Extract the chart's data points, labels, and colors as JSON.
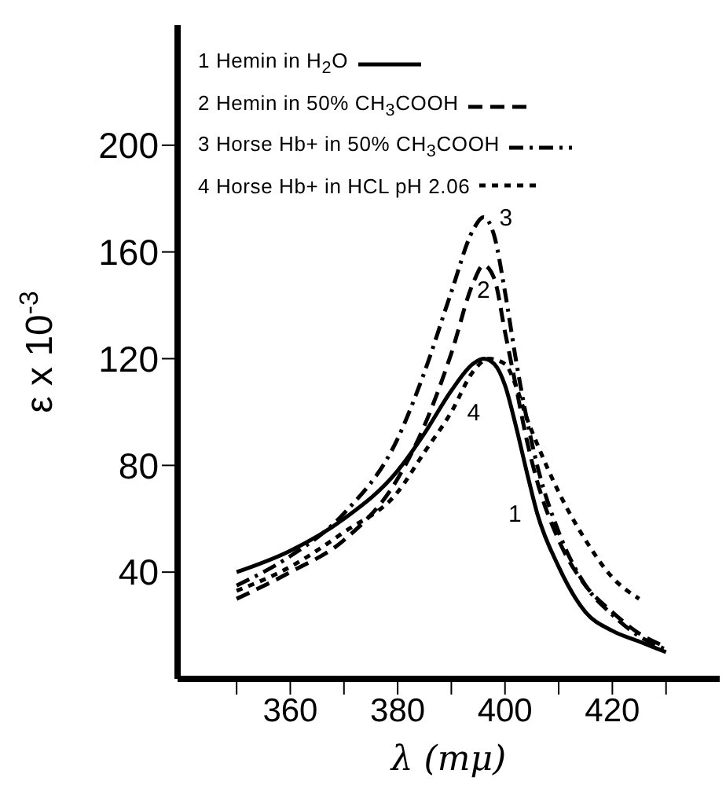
{
  "chart_data": {
    "type": "line",
    "xlabel": "λ (mμ)",
    "ylabel": "ε x 10$^{-3}$",
    "xlim": [
      339,
      440
    ],
    "xticks": [
      {
        "value": 350,
        "label": null
      },
      360,
      {
        "value": 370,
        "label": null
      },
      380,
      {
        "value": 390,
        "label": null
      },
      400,
      {
        "value": 410,
        "label": null
      },
      420,
      {
        "value": 430,
        "label": null
      }
    ],
    "ylim": [
      0,
      245
    ],
    "yticks": [
      40,
      80,
      120,
      160,
      200
    ],
    "grid": false,
    "legend": "top",
    "marker": "none",
    "series": [
      {
        "name": "1 Hemin in H$_{2}$O",
        "color": "#000000",
        "line_style": "solid",
        "x": [
          350,
          360,
          370,
          380,
          385,
          390,
          394,
          396,
          398,
          400,
          402,
          404,
          406,
          410,
          415,
          420,
          425,
          430
        ],
        "values": [
          40,
          48,
          60,
          78,
          92,
          108,
          118,
          120,
          118,
          110,
          95,
          78,
          62,
          42,
          25,
          18,
          14,
          10
        ]
      },
      {
        "name": "2 Hemin in 50% CH$_{3}$COOH",
        "color": "#000000",
        "line_style": "dashed",
        "x": [
          350,
          360,
          370,
          380,
          385,
          390,
          394,
          396,
          398,
          400,
          402,
          404,
          406,
          410,
          415,
          420,
          425,
          430
        ],
        "values": [
          30,
          40,
          52,
          75,
          95,
          122,
          148,
          155,
          150,
          130,
          110,
          90,
          74,
          52,
          35,
          25,
          17,
          12
        ]
      },
      {
        "name": "3 Horse Hb+ in 50% CH$_{3}$COOH",
        "color": "#000000",
        "line_style": "dashdot",
        "x": [
          350,
          360,
          370,
          380,
          385,
          390,
          394,
          396,
          398,
          400,
          402,
          404,
          406,
          410,
          415,
          420,
          425,
          430
        ],
        "values": [
          35,
          46,
          62,
          90,
          115,
          145,
          168,
          173,
          166,
          145,
          120,
          98,
          80,
          55,
          35,
          24,
          16,
          11
        ]
      },
      {
        "name": "4 Horse Hb+ in HCL pH 2.06",
        "color": "#000000",
        "line_style": "dotted",
        "x": [
          350,
          360,
          370,
          380,
          385,
          390,
          394,
          397,
          400,
          402,
          404,
          406,
          410,
          415,
          420,
          425
        ],
        "values": [
          33,
          42,
          55,
          70,
          85,
          100,
          115,
          120,
          118,
          110,
          98,
          88,
          70,
          52,
          38,
          30
        ]
      }
    ],
    "annotations": [
      {
        "text": "1",
        "x": 406,
        "y": 62
      },
      {
        "text": "2",
        "x": 396,
        "y": 155
      },
      {
        "text": "3",
        "x": 396,
        "y": 173
      },
      {
        "text": "4",
        "x": 390,
        "y": 100
      }
    ]
  }
}
